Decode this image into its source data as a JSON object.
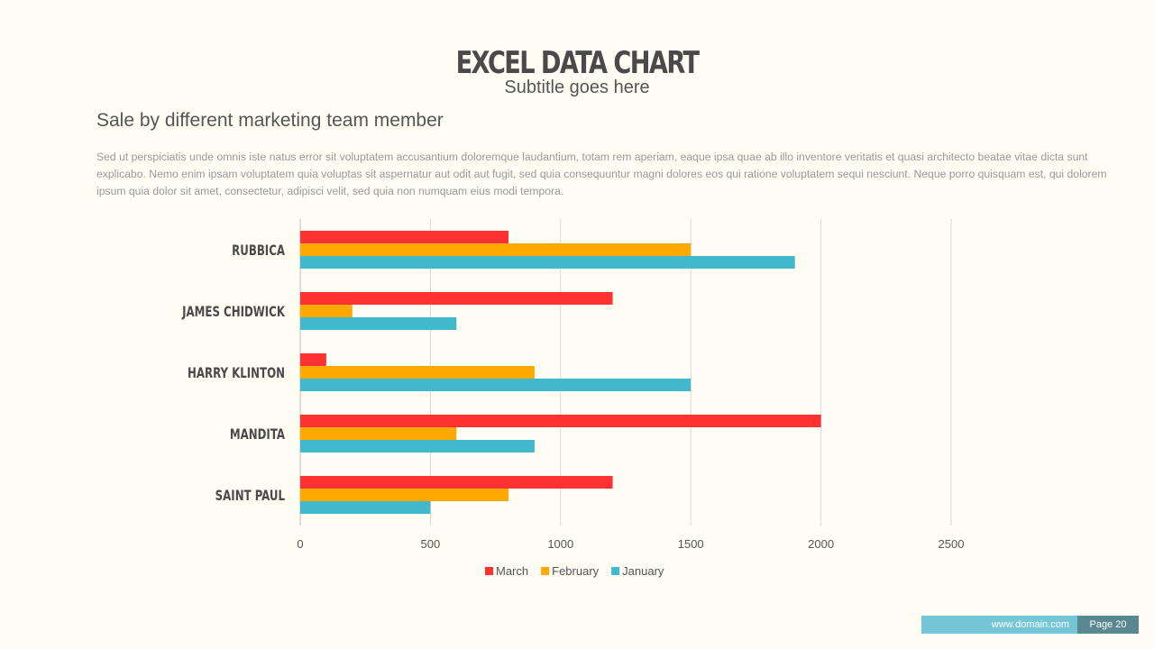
{
  "header": {
    "title": "EXCEL DATA CHART",
    "subtitle": "Subtitle goes here"
  },
  "section": {
    "heading": "Sale by different marketing team member",
    "body": "Sed ut perspiciatis unde omnis iste natus error sit voluptatem accusantium doloremque laudantium, totam rem aperiam, eaque ipsa quae ab illo inventore veritatis et quasi architecto beatae vitae dicta sunt explicabo. Nemo enim ipsam voluptatem quia voluptas sit aspernatur aut odit aut fugit, sed quia consequuntur magni dolores eos qui ratione voluptatem sequi nesciunt. Neque porro quisquam est, qui dolorem ipsum quia dolor sit amet, consectetur, adipisci velit, sed quia non numquam eius modi tempora."
  },
  "chart_data": {
    "type": "bar",
    "orientation": "horizontal",
    "categories": [
      "RUBBICA",
      "JAMES CHIDWICK",
      "HARRY KLINTON",
      "MANDITA",
      "SAINT PAUL"
    ],
    "series": [
      {
        "name": "March",
        "color": "#ff3131",
        "values": [
          800,
          1200,
          100,
          2000,
          1200
        ]
      },
      {
        "name": "February",
        "color": "#ffa800",
        "values": [
          1500,
          200,
          900,
          600,
          800
        ]
      },
      {
        "name": "January",
        "color": "#41b8cc",
        "values": [
          1900,
          600,
          1500,
          900,
          500
        ]
      }
    ],
    "xlim": [
      0,
      2500
    ],
    "xticks": [
      0,
      500,
      1000,
      1500,
      2000,
      2500
    ],
    "grid": true,
    "legend": "bottom"
  },
  "footer": {
    "url": "www.domain.com",
    "page": "Page 20"
  }
}
